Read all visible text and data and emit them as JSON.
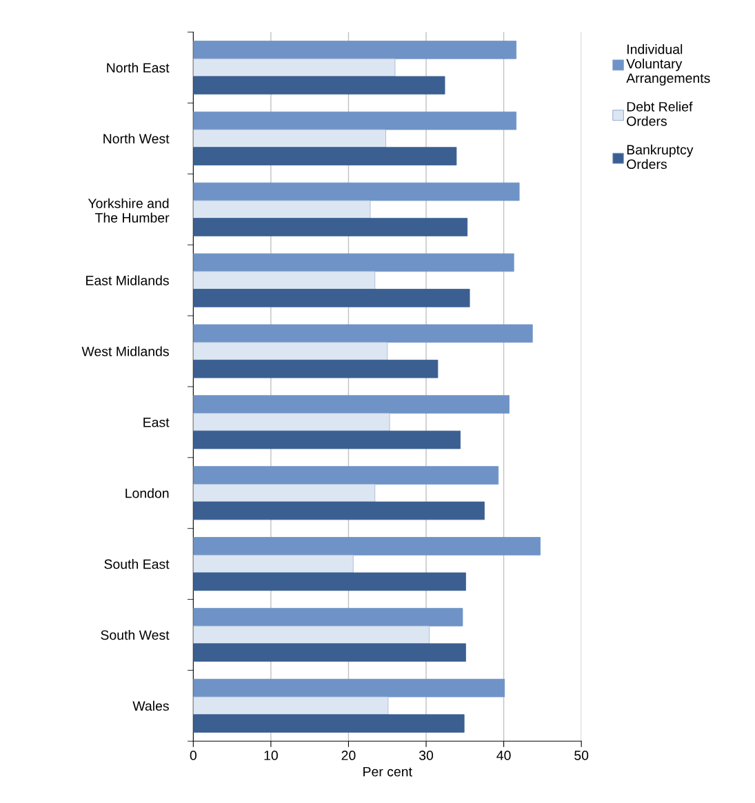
{
  "chart_data": {
    "type": "bar",
    "orientation": "horizontal",
    "xlabel": "Per cent",
    "categories": [
      "North East",
      "North West",
      "Yorkshire and The Humber",
      "East Midlands",
      "West Midlands",
      "East",
      "London",
      "South East",
      "South West",
      "Wales"
    ],
    "series": [
      {
        "name": "Individual Voluntary Arrangements",
        "color": "#6f93c6",
        "values": [
          41.6,
          41.6,
          42.0,
          41.3,
          43.7,
          40.7,
          39.3,
          44.7,
          34.7,
          40.1
        ]
      },
      {
        "name": "Debt Relief Orders",
        "color": "#dce6f2",
        "values": [
          26.0,
          24.8,
          22.8,
          23.4,
          25.0,
          25.3,
          23.4,
          20.6,
          30.4,
          25.1
        ]
      },
      {
        "name": "Bankruptcy Orders",
        "color": "#3b5f91",
        "values": [
          32.4,
          33.9,
          35.3,
          35.6,
          31.5,
          34.4,
          37.5,
          35.1,
          35.1,
          34.9
        ]
      }
    ],
    "xlim": [
      0,
      50
    ],
    "xticks": [
      0,
      10,
      20,
      30,
      40,
      50
    ],
    "grid": "x",
    "legend": "top right"
  }
}
